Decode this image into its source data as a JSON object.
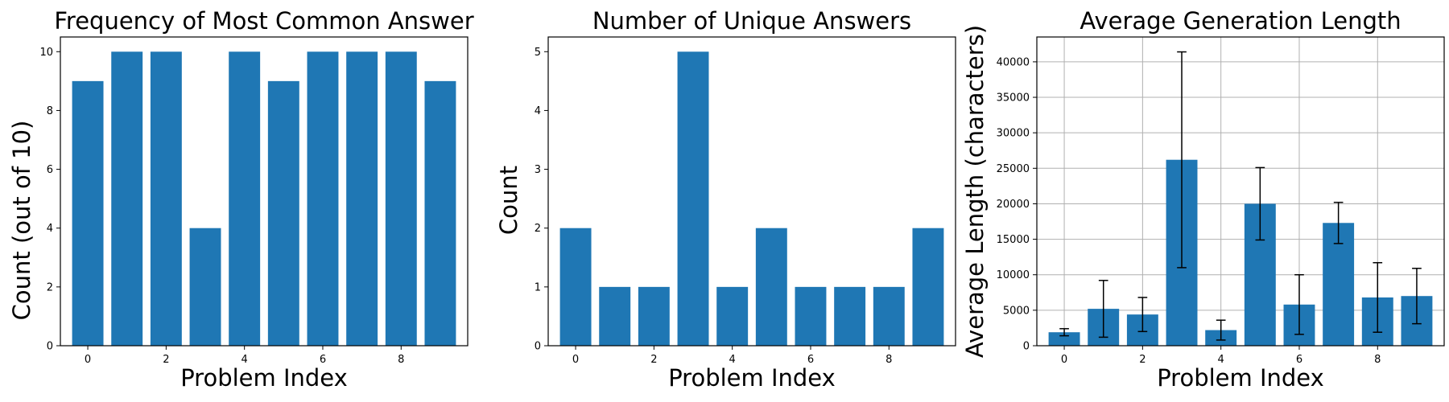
{
  "style": {
    "bar_color": "#1f77b4",
    "error_color": "#000000",
    "grid_color": "#b0b0b0"
  },
  "chart_data": [
    {
      "type": "bar",
      "title": "Frequency of Most Common Answer",
      "xlabel": "Problem Index",
      "ylabel": "Count (out of 10)",
      "categories": [
        0,
        1,
        2,
        3,
        4,
        5,
        6,
        7,
        8,
        9
      ],
      "values": [
        9,
        10,
        10,
        4,
        10,
        9,
        10,
        10,
        10,
        9
      ],
      "xlim": [
        -0.7,
        9.7
      ],
      "ylim": [
        0,
        10.5
      ],
      "xticks": [
        0,
        2,
        4,
        6,
        8
      ],
      "yticks": [
        0,
        2,
        4,
        6,
        8,
        10
      ],
      "grid": false
    },
    {
      "type": "bar",
      "title": "Number of Unique Answers",
      "xlabel": "Problem Index",
      "ylabel": "Count",
      "categories": [
        0,
        1,
        2,
        3,
        4,
        5,
        6,
        7,
        8,
        9
      ],
      "values": [
        2,
        1,
        1,
        5,
        1,
        2,
        1,
        1,
        1,
        2
      ],
      "xlim": [
        -0.7,
        9.7
      ],
      "ylim": [
        0,
        5.25
      ],
      "xticks": [
        0,
        2,
        4,
        6,
        8
      ],
      "yticks": [
        0,
        1,
        2,
        3,
        4,
        5
      ],
      "grid": false
    },
    {
      "type": "bar",
      "title": "Average Generation Length",
      "xlabel": "Problem Index",
      "ylabel": "Average Length (characters)",
      "categories": [
        0,
        1,
        2,
        3,
        4,
        5,
        6,
        7,
        8,
        9
      ],
      "values": [
        1900,
        5200,
        4400,
        26200,
        2200,
        20000,
        5800,
        17300,
        6800,
        7000
      ],
      "errors": [
        500,
        4000,
        2400,
        15200,
        1400,
        5100,
        4200,
        2900,
        4900,
        3900
      ],
      "xlim": [
        -0.7,
        9.7
      ],
      "ylim": [
        0,
        43500
      ],
      "xticks": [
        0,
        2,
        4,
        6,
        8
      ],
      "yticks": [
        0,
        5000,
        10000,
        15000,
        20000,
        25000,
        30000,
        35000,
        40000
      ],
      "grid": true
    }
  ]
}
